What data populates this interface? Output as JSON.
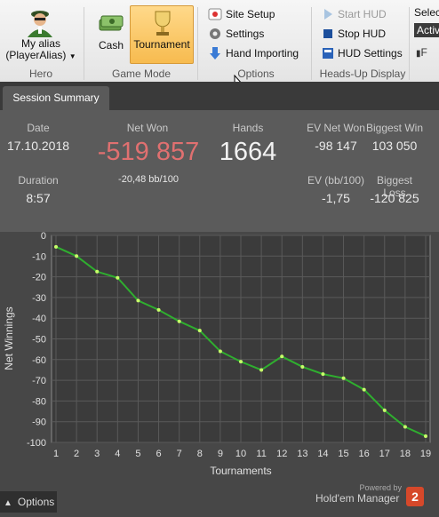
{
  "ribbon": {
    "hero": {
      "name": "My alias",
      "sub": "(PlayerAlias)",
      "label": "Hero"
    },
    "game_mode": {
      "cash": "Cash",
      "tournament": "Tournament",
      "label": "Game Mode"
    },
    "options": {
      "site_setup": "Site Setup",
      "settings": "Settings",
      "hand_importing": "Hand Importing",
      "label": "Options"
    },
    "hud": {
      "start": "Start HUD",
      "stop": "Stop HUD",
      "settings": "HUD Settings",
      "label": "Heads-Up Display"
    },
    "select": {
      "label": "Selec",
      "value": "Activ",
      "extra": "F"
    }
  },
  "tab": {
    "label": "Session Summary"
  },
  "summary": {
    "date_label": "Date",
    "date": "17.10.2018",
    "net_won_label": "Net Won",
    "net_won": "-519 857",
    "bb100": "-20,48 bb/100",
    "hands_label": "Hands",
    "hands": "1664",
    "ev_net_won_label": "EV Net Won",
    "ev_net_won": "-98 147",
    "biggest_win_label": "Biggest Win",
    "biggest_win": "103 050",
    "duration_label": "Duration",
    "duration": "8:57",
    "ev_bb100_label": "EV (bb/100)",
    "ev_bb100": "-1,75",
    "biggest_loss_label": "Biggest Loss",
    "biggest_loss": "-120 825",
    "colors": {
      "net_won": "#e07070"
    }
  },
  "chart_data": {
    "type": "line",
    "xlabel": "Tournaments",
    "ylabel": "Net Winnings",
    "xlim": [
      1,
      19
    ],
    "ylim": [
      -100,
      0
    ],
    "x": [
      1,
      2,
      3,
      4,
      5,
      6,
      7,
      8,
      9,
      10,
      11,
      12,
      13,
      14,
      15,
      16,
      17,
      18,
      19
    ],
    "series": [
      {
        "values": [
          -5.5,
          -10,
          -17.5,
          -20.5,
          -31.5,
          -36,
          -41.5,
          -46,
          -56,
          -61,
          -65,
          -58.5,
          -63.5,
          -67,
          -69,
          -74.5,
          -84.5,
          -92.5,
          -97
        ]
      }
    ],
    "yticks": [
      0,
      -10,
      -20,
      -30,
      -40,
      -50,
      -60,
      -70,
      -80,
      -90,
      -100
    ],
    "xticks": [
      1,
      2,
      3,
      4,
      5,
      6,
      7,
      8,
      9,
      10,
      11,
      12,
      13,
      14,
      15,
      16,
      17,
      18,
      19
    ],
    "grid": true,
    "line_color": "#2fae2f",
    "point_color": "#c8ff6a"
  },
  "footer": {
    "options": "Options",
    "powered": "Powered by",
    "brand": "Hold'em Manager",
    "brand_number": "2"
  }
}
